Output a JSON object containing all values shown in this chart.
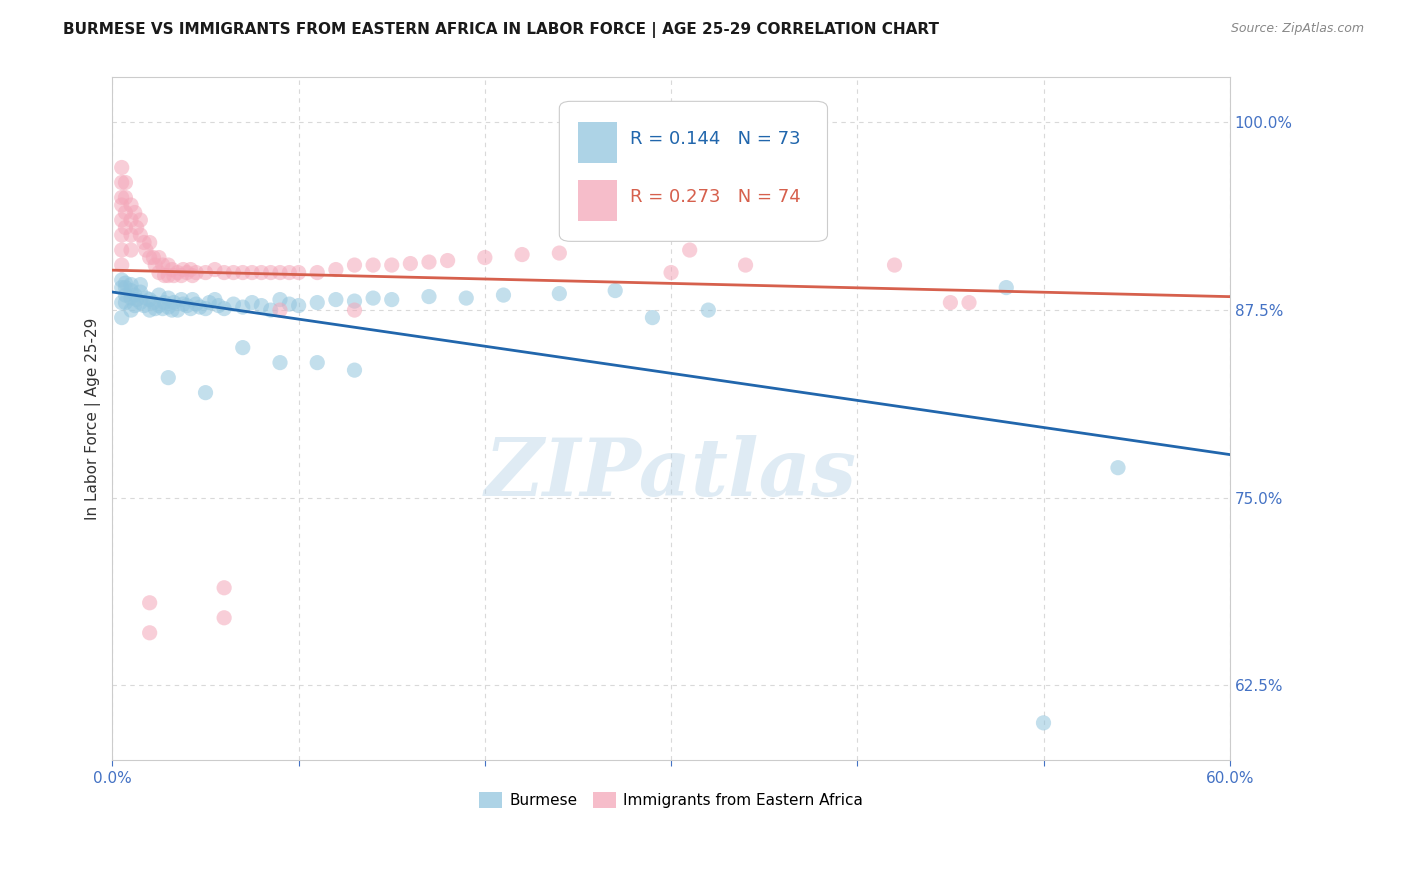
{
  "title": "BURMESE VS IMMIGRANTS FROM EASTERN AFRICA IN LABOR FORCE | AGE 25-29 CORRELATION CHART",
  "source": "Source: ZipAtlas.com",
  "ylabel": "In Labor Force | Age 25-29",
  "xlim": [
    0.0,
    0.6
  ],
  "ylim": [
    0.575,
    1.03
  ],
  "yticks": [
    0.625,
    0.75,
    0.875,
    1.0
  ],
  "ytick_labels": [
    "62.5%",
    "75.0%",
    "87.5%",
    "100.0%"
  ],
  "xticks": [
    0.0,
    0.1,
    0.2,
    0.3,
    0.4,
    0.5,
    0.6
  ],
  "xtick_labels": [
    "0.0%",
    "",
    "",
    "",
    "",
    "",
    "60.0%"
  ],
  "blue_R": 0.144,
  "blue_N": 73,
  "pink_R": 0.273,
  "pink_N": 74,
  "blue_color": "#92c5de",
  "pink_color": "#f4a7b9",
  "blue_line_color": "#2166ac",
  "pink_line_color": "#d6604d",
  "blue_scatter": [
    [
      0.005,
      0.87
    ],
    [
      0.005,
      0.88
    ],
    [
      0.005,
      0.89
    ],
    [
      0.005,
      0.895
    ],
    [
      0.007,
      0.88
    ],
    [
      0.007,
      0.885
    ],
    [
      0.007,
      0.89
    ],
    [
      0.007,
      0.893
    ],
    [
      0.01,
      0.875
    ],
    [
      0.01,
      0.883
    ],
    [
      0.01,
      0.888
    ],
    [
      0.01,
      0.892
    ],
    [
      0.012,
      0.878
    ],
    [
      0.012,
      0.885
    ],
    [
      0.013,
      0.882
    ],
    [
      0.015,
      0.88
    ],
    [
      0.015,
      0.887
    ],
    [
      0.015,
      0.892
    ],
    [
      0.017,
      0.878
    ],
    [
      0.018,
      0.883
    ],
    [
      0.02,
      0.875
    ],
    [
      0.02,
      0.882
    ],
    [
      0.022,
      0.88
    ],
    [
      0.023,
      0.876
    ],
    [
      0.025,
      0.878
    ],
    [
      0.025,
      0.885
    ],
    [
      0.027,
      0.876
    ],
    [
      0.028,
      0.88
    ],
    [
      0.03,
      0.877
    ],
    [
      0.03,
      0.883
    ],
    [
      0.032,
      0.875
    ],
    [
      0.033,
      0.88
    ],
    [
      0.035,
      0.875
    ],
    [
      0.037,
      0.882
    ],
    [
      0.038,
      0.879
    ],
    [
      0.04,
      0.878
    ],
    [
      0.042,
      0.876
    ],
    [
      0.043,
      0.882
    ],
    [
      0.045,
      0.879
    ],
    [
      0.047,
      0.877
    ],
    [
      0.05,
      0.876
    ],
    [
      0.052,
      0.88
    ],
    [
      0.055,
      0.882
    ],
    [
      0.057,
      0.878
    ],
    [
      0.06,
      0.876
    ],
    [
      0.065,
      0.879
    ],
    [
      0.07,
      0.877
    ],
    [
      0.075,
      0.88
    ],
    [
      0.08,
      0.878
    ],
    [
      0.085,
      0.875
    ],
    [
      0.09,
      0.882
    ],
    [
      0.095,
      0.879
    ],
    [
      0.1,
      0.878
    ],
    [
      0.11,
      0.88
    ],
    [
      0.12,
      0.882
    ],
    [
      0.13,
      0.881
    ],
    [
      0.14,
      0.883
    ],
    [
      0.15,
      0.882
    ],
    [
      0.17,
      0.884
    ],
    [
      0.19,
      0.883
    ],
    [
      0.21,
      0.885
    ],
    [
      0.24,
      0.886
    ],
    [
      0.27,
      0.888
    ],
    [
      0.03,
      0.83
    ],
    [
      0.05,
      0.82
    ],
    [
      0.07,
      0.85
    ],
    [
      0.09,
      0.84
    ],
    [
      0.11,
      0.84
    ],
    [
      0.13,
      0.835
    ],
    [
      0.29,
      0.87
    ],
    [
      0.32,
      0.875
    ],
    [
      0.48,
      0.89
    ],
    [
      0.5,
      0.6
    ],
    [
      0.54,
      0.77
    ]
  ],
  "pink_scatter": [
    [
      0.005,
      0.97
    ],
    [
      0.005,
      0.96
    ],
    [
      0.005,
      0.95
    ],
    [
      0.005,
      0.945
    ],
    [
      0.005,
      0.935
    ],
    [
      0.005,
      0.925
    ],
    [
      0.005,
      0.915
    ],
    [
      0.005,
      0.905
    ],
    [
      0.007,
      0.96
    ],
    [
      0.007,
      0.95
    ],
    [
      0.007,
      0.94
    ],
    [
      0.007,
      0.93
    ],
    [
      0.01,
      0.945
    ],
    [
      0.01,
      0.935
    ],
    [
      0.01,
      0.925
    ],
    [
      0.01,
      0.915
    ],
    [
      0.012,
      0.94
    ],
    [
      0.013,
      0.93
    ],
    [
      0.015,
      0.935
    ],
    [
      0.015,
      0.925
    ],
    [
      0.017,
      0.92
    ],
    [
      0.018,
      0.915
    ],
    [
      0.02,
      0.92
    ],
    [
      0.02,
      0.91
    ],
    [
      0.022,
      0.91
    ],
    [
      0.023,
      0.905
    ],
    [
      0.025,
      0.91
    ],
    [
      0.025,
      0.9
    ],
    [
      0.027,
      0.905
    ],
    [
      0.028,
      0.898
    ],
    [
      0.03,
      0.905
    ],
    [
      0.03,
      0.898
    ],
    [
      0.032,
      0.902
    ],
    [
      0.033,
      0.898
    ],
    [
      0.035,
      0.9
    ],
    [
      0.037,
      0.898
    ],
    [
      0.038,
      0.902
    ],
    [
      0.04,
      0.9
    ],
    [
      0.042,
      0.902
    ],
    [
      0.043,
      0.898
    ],
    [
      0.045,
      0.9
    ],
    [
      0.05,
      0.9
    ],
    [
      0.055,
      0.902
    ],
    [
      0.06,
      0.9
    ],
    [
      0.065,
      0.9
    ],
    [
      0.07,
      0.9
    ],
    [
      0.075,
      0.9
    ],
    [
      0.08,
      0.9
    ],
    [
      0.085,
      0.9
    ],
    [
      0.09,
      0.9
    ],
    [
      0.095,
      0.9
    ],
    [
      0.1,
      0.9
    ],
    [
      0.11,
      0.9
    ],
    [
      0.12,
      0.902
    ],
    [
      0.13,
      0.905
    ],
    [
      0.14,
      0.905
    ],
    [
      0.15,
      0.905
    ],
    [
      0.16,
      0.906
    ],
    [
      0.17,
      0.907
    ],
    [
      0.18,
      0.908
    ],
    [
      0.2,
      0.91
    ],
    [
      0.22,
      0.912
    ],
    [
      0.24,
      0.913
    ],
    [
      0.02,
      0.68
    ],
    [
      0.02,
      0.66
    ],
    [
      0.06,
      0.69
    ],
    [
      0.06,
      0.67
    ],
    [
      0.09,
      0.875
    ],
    [
      0.13,
      0.875
    ],
    [
      0.3,
      0.9
    ],
    [
      0.31,
      0.915
    ],
    [
      0.34,
      0.905
    ],
    [
      0.42,
      0.905
    ],
    [
      0.45,
      0.88
    ],
    [
      0.46,
      0.88
    ]
  ],
  "watermark": "ZIPatlas",
  "title_fontsize": 11,
  "label_fontsize": 11,
  "tick_fontsize": 11,
  "legend_fontsize": 13,
  "tick_color": "#4472c4",
  "axis_color": "#cccccc",
  "grid_color": "#d9d9d9",
  "background_color": "#ffffff"
}
